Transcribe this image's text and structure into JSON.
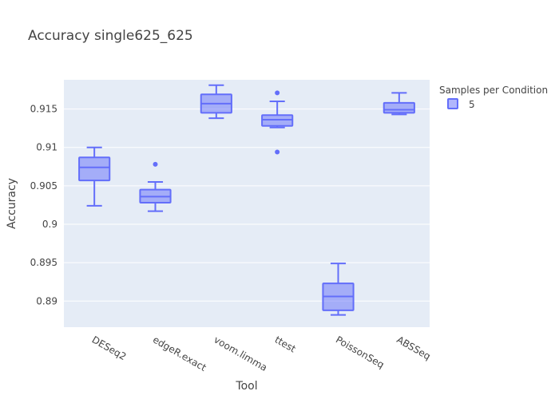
{
  "chart_data": {
    "type": "box",
    "title": "Accuracy single625_625",
    "xlabel": "Tool",
    "ylabel": "Accuracy",
    "categories": [
      "DESeq2",
      "edgeR.exact",
      "voom.limma",
      "ttest",
      "PoissonSeq",
      "ABSSeq"
    ],
    "ylim": [
      0.8866,
      0.9188
    ],
    "yticks": [
      0.89,
      0.895,
      0.9,
      0.905,
      0.91,
      0.915
    ],
    "ytick_labels": [
      "0.89",
      "0.895",
      "0.9",
      "0.905",
      "0.91",
      "0.915"
    ],
    "grid": true,
    "legend": {
      "title": "Samples per Condition",
      "placement": "top-right"
    },
    "series": [
      {
        "name": "5",
        "color": "#636efa",
        "boxes": [
          {
            "category": "DESeq2",
            "lower_whisker": 0.9024,
            "q1": 0.9057,
            "median": 0.9074,
            "q3": 0.9087,
            "upper_whisker": 0.91,
            "outliers": []
          },
          {
            "category": "edgeR.exact",
            "lower_whisker": 0.9017,
            "q1": 0.9028,
            "median": 0.9036,
            "q3": 0.9045,
            "upper_whisker": 0.9055,
            "outliers": [
              0.9078
            ]
          },
          {
            "category": "voom.limma",
            "lower_whisker": 0.9138,
            "q1": 0.9145,
            "median": 0.9157,
            "q3": 0.9169,
            "upper_whisker": 0.9181,
            "outliers": []
          },
          {
            "category": "ttest",
            "lower_whisker": 0.9126,
            "q1": 0.9128,
            "median": 0.9136,
            "q3": 0.9142,
            "upper_whisker": 0.916,
            "outliers": [
              0.9171,
              0.9094
            ]
          },
          {
            "category": "PoissonSeq",
            "lower_whisker": 0.8882,
            "q1": 0.8888,
            "median": 0.8906,
            "q3": 0.8923,
            "upper_whisker": 0.8949,
            "outliers": []
          },
          {
            "category": "ABSSeq",
            "lower_whisker": 0.9143,
            "q1": 0.9145,
            "median": 0.9149,
            "q3": 0.9158,
            "upper_whisker": 0.9171,
            "outliers": []
          }
        ]
      }
    ]
  },
  "colors": {
    "plot_bg": "#e5ecf6",
    "grid": "#ffffff",
    "box_line": "#636efa",
    "box_fill": "rgba(99,110,250,0.5)"
  }
}
